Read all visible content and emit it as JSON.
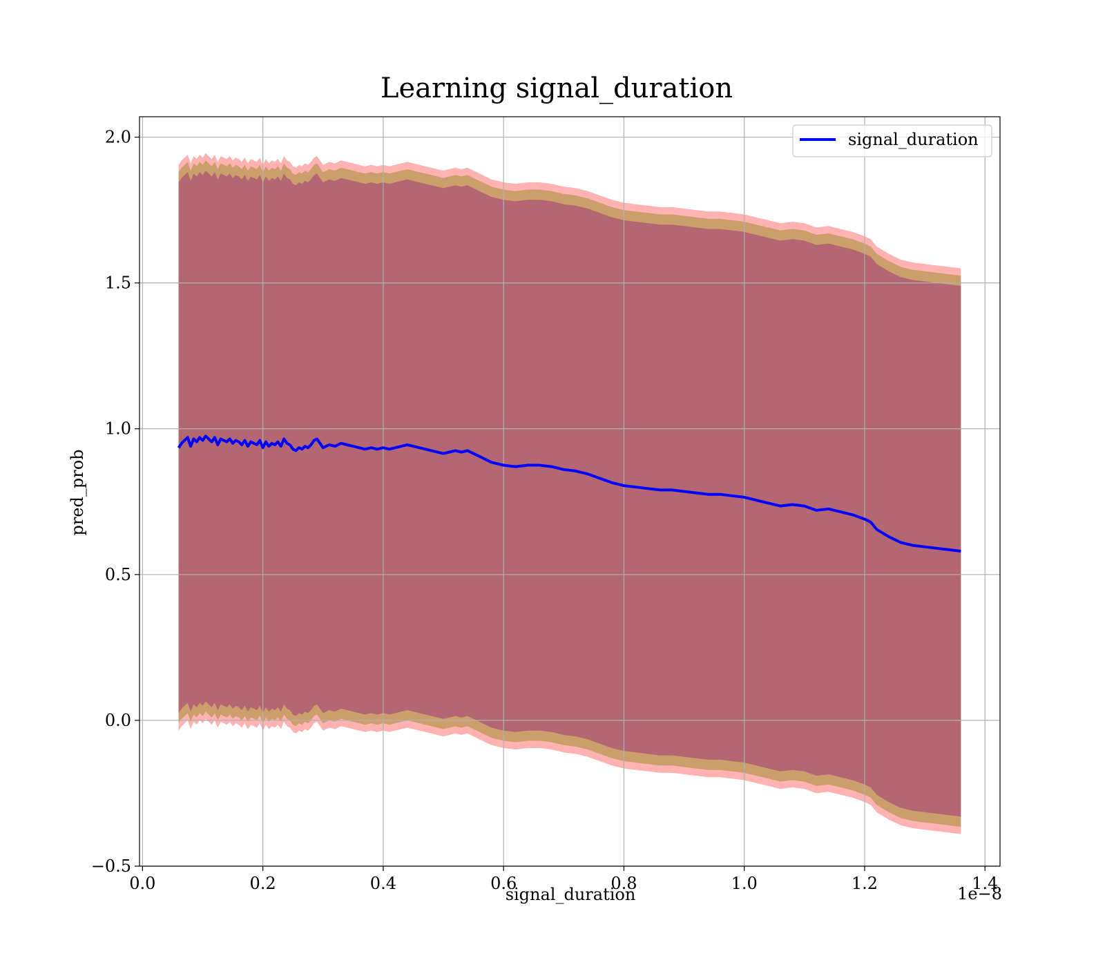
{
  "chart_data": {
    "type": "area",
    "title": "Learning signal_duration",
    "xlabel": "signal_duration",
    "ylabel": "pred_prob",
    "x_offset_label": "1e−8",
    "xlim": [
      -0.005,
      1.425
    ],
    "ylim": [
      -0.5,
      2.07
    ],
    "x_ticks": [
      0.0,
      0.2,
      0.4,
      0.6,
      0.8,
      1.0,
      1.2,
      1.4
    ],
    "x_tick_labels": [
      "0.0",
      "0.2",
      "0.4",
      "0.6",
      "0.8",
      "1.0",
      "1.2",
      "1.4"
    ],
    "y_ticks": [
      -0.5,
      0.0,
      0.5,
      1.0,
      1.5,
      2.0
    ],
    "y_tick_labels": [
      "−0.5",
      "0.0",
      "0.5",
      "1.0",
      "1.5",
      "2.0"
    ],
    "grid": true,
    "legend_position": "top-right",
    "x": [
      0.06,
      0.065,
      0.07,
      0.075,
      0.08,
      0.085,
      0.09,
      0.095,
      0.1,
      0.105,
      0.11,
      0.115,
      0.12,
      0.125,
      0.13,
      0.135,
      0.14,
      0.145,
      0.15,
      0.155,
      0.16,
      0.165,
      0.17,
      0.175,
      0.18,
      0.185,
      0.19,
      0.195,
      0.2,
      0.205,
      0.21,
      0.215,
      0.22,
      0.225,
      0.23,
      0.235,
      0.24,
      0.245,
      0.25,
      0.255,
      0.26,
      0.265,
      0.27,
      0.275,
      0.28,
      0.285,
      0.29,
      0.295,
      0.3,
      0.31,
      0.32,
      0.33,
      0.34,
      0.35,
      0.36,
      0.37,
      0.38,
      0.39,
      0.4,
      0.41,
      0.42,
      0.43,
      0.44,
      0.45,
      0.46,
      0.47,
      0.48,
      0.49,
      0.5,
      0.51,
      0.52,
      0.53,
      0.54,
      0.55,
      0.56,
      0.57,
      0.58,
      0.59,
      0.6,
      0.62,
      0.64,
      0.66,
      0.68,
      0.7,
      0.72,
      0.74,
      0.76,
      0.78,
      0.8,
      0.82,
      0.84,
      0.86,
      0.88,
      0.9,
      0.92,
      0.94,
      0.96,
      0.98,
      1.0,
      1.02,
      1.04,
      1.06,
      1.08,
      1.1,
      1.12,
      1.14,
      1.16,
      1.18,
      1.2,
      1.21,
      1.22,
      1.24,
      1.26,
      1.28,
      1.3,
      1.32,
      1.34,
      1.36
    ],
    "series": [
      {
        "name": "signal_duration",
        "color": "#0000ff",
        "values": [
          0.935,
          0.95,
          0.96,
          0.97,
          0.94,
          0.965,
          0.955,
          0.97,
          0.96,
          0.975,
          0.965,
          0.955,
          0.97,
          0.945,
          0.965,
          0.96,
          0.955,
          0.965,
          0.95,
          0.96,
          0.955,
          0.945,
          0.96,
          0.94,
          0.955,
          0.95,
          0.945,
          0.96,
          0.935,
          0.955,
          0.94,
          0.95,
          0.945,
          0.955,
          0.94,
          0.965,
          0.95,
          0.945,
          0.93,
          0.925,
          0.935,
          0.93,
          0.94,
          0.935,
          0.945,
          0.96,
          0.965,
          0.95,
          0.935,
          0.945,
          0.94,
          0.95,
          0.945,
          0.94,
          0.935,
          0.93,
          0.935,
          0.93,
          0.935,
          0.93,
          0.935,
          0.94,
          0.945,
          0.94,
          0.935,
          0.93,
          0.925,
          0.92,
          0.915,
          0.92,
          0.925,
          0.92,
          0.925,
          0.915,
          0.905,
          0.895,
          0.885,
          0.88,
          0.875,
          0.87,
          0.875,
          0.875,
          0.87,
          0.86,
          0.855,
          0.845,
          0.83,
          0.815,
          0.805,
          0.8,
          0.795,
          0.79,
          0.79,
          0.785,
          0.78,
          0.775,
          0.775,
          0.77,
          0.765,
          0.755,
          0.745,
          0.735,
          0.74,
          0.735,
          0.72,
          0.725,
          0.715,
          0.705,
          0.69,
          0.68,
          0.655,
          0.63,
          0.61,
          0.6,
          0.595,
          0.59,
          0.585,
          0.58
        ]
      }
    ],
    "bands": [
      {
        "color": "#ff0000",
        "opacity": 0.3,
        "upper_offset": 0.97,
        "lower_offset": -0.97
      },
      {
        "color": "#808000",
        "opacity": 0.4,
        "upper_offset": 0.945,
        "lower_offset": -0.945
      },
      {
        "color": "#800080",
        "opacity": 0.35,
        "upper_offset": 0.91,
        "lower_offset": -0.91
      }
    ]
  }
}
